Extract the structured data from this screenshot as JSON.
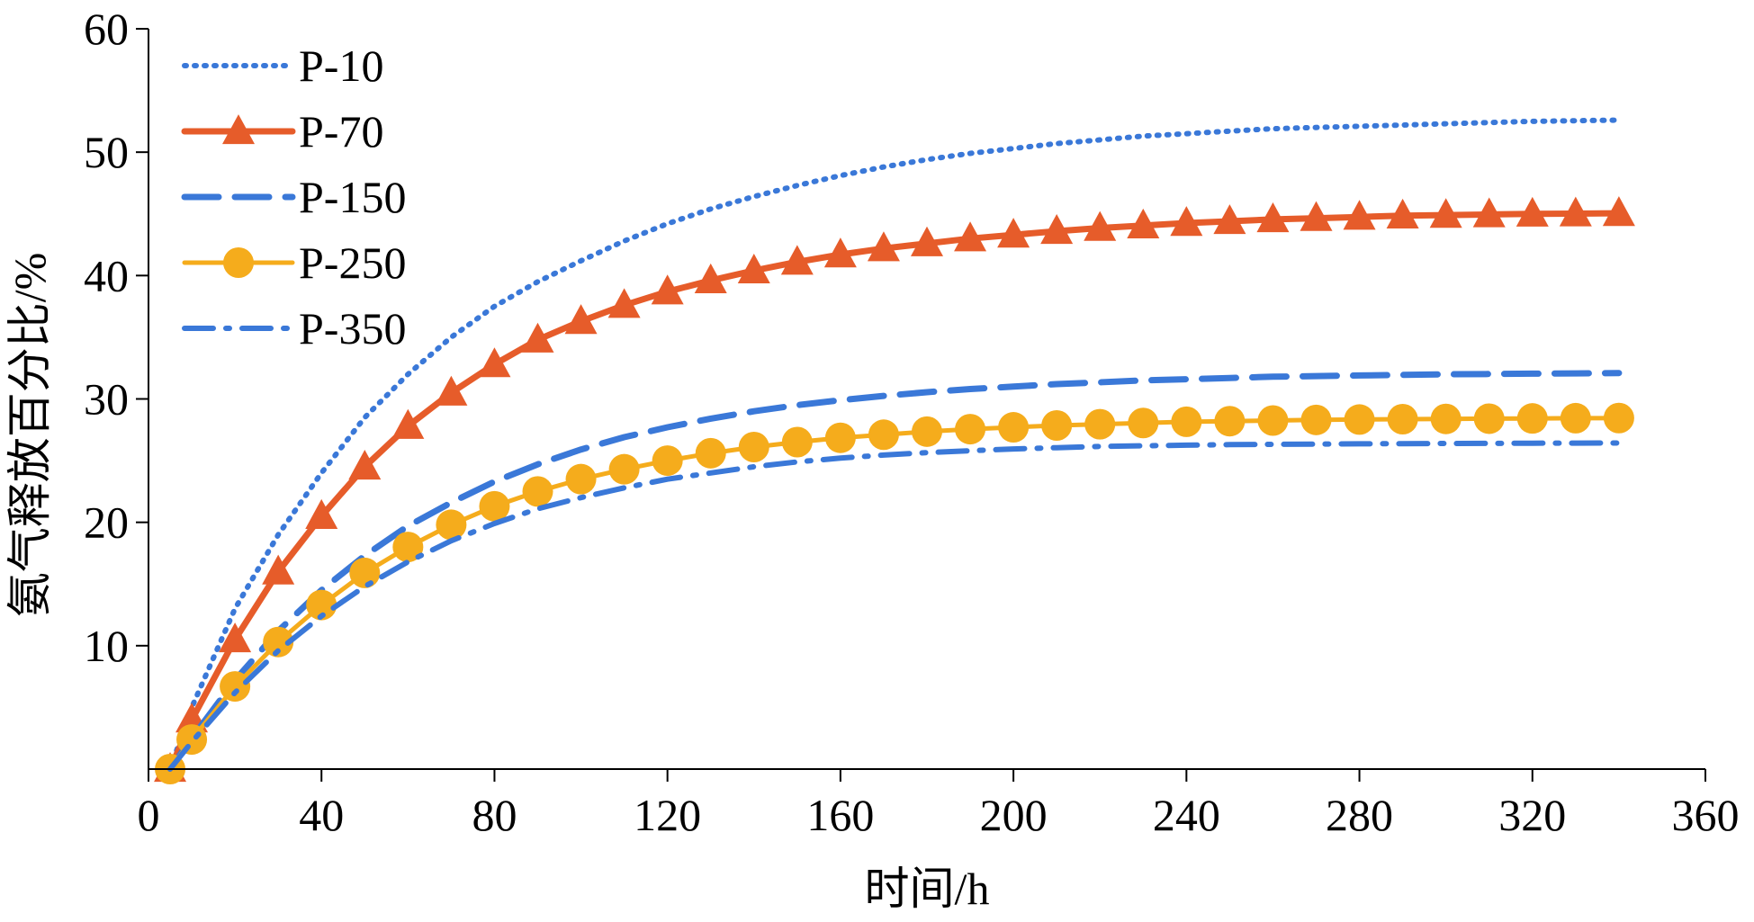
{
  "chart_data": {
    "type": "line",
    "title": "",
    "xlabel": "时间/h",
    "ylabel": "氨气释放百分比/%",
    "xlim": [
      0,
      360
    ],
    "ylim": [
      0,
      60
    ],
    "xticks": [
      0,
      40,
      80,
      120,
      160,
      200,
      240,
      280,
      320,
      360
    ],
    "yticks": [
      10,
      20,
      30,
      40,
      50,
      60
    ],
    "grid": false,
    "legend_position": "top-left",
    "series": [
      {
        "name": "P-10",
        "color": "#3a78d8",
        "style": "dotted",
        "marker": "none",
        "x": [
          5,
          10,
          20,
          30,
          40,
          50,
          60,
          70,
          80,
          90,
          100,
          110,
          120,
          130,
          140,
          150,
          160,
          170,
          180,
          190,
          200,
          210,
          220,
          230,
          240,
          250,
          260,
          270,
          280,
          290,
          300,
          310,
          320,
          330,
          340
        ],
        "y": [
          0,
          5,
          13,
          19,
          24,
          28.5,
          32,
          35,
          37.5,
          39.5,
          41.2,
          42.8,
          44.2,
          45.4,
          46.4,
          47.3,
          48.1,
          48.8,
          49.4,
          49.9,
          50.3,
          50.7,
          51,
          51.3,
          51.5,
          51.7,
          51.9,
          52,
          52.1,
          52.2,
          52.3,
          52.4,
          52.5,
          52.55,
          52.6
        ]
      },
      {
        "name": "P-70",
        "color": "#e65c2a",
        "style": "solid",
        "marker": "triangle",
        "x": [
          5,
          10,
          20,
          30,
          40,
          50,
          60,
          70,
          80,
          90,
          100,
          110,
          120,
          130,
          140,
          150,
          160,
          170,
          180,
          190,
          200,
          210,
          220,
          230,
          240,
          250,
          260,
          270,
          280,
          290,
          300,
          310,
          320,
          330,
          340
        ],
        "y": [
          0,
          4,
          10.5,
          16,
          20.5,
          24.5,
          27.8,
          30.5,
          32.8,
          34.8,
          36.3,
          37.6,
          38.7,
          39.6,
          40.4,
          41.1,
          41.7,
          42.2,
          42.6,
          43,
          43.3,
          43.6,
          43.85,
          44.05,
          44.25,
          44.4,
          44.55,
          44.65,
          44.75,
          44.85,
          44.9,
          44.95,
          45,
          45.02,
          45.05
        ]
      },
      {
        "name": "P-150",
        "color": "#3a78d8",
        "style": "dashed",
        "marker": "none",
        "x": [
          5,
          10,
          20,
          30,
          40,
          50,
          60,
          70,
          80,
          90,
          100,
          110,
          120,
          130,
          140,
          150,
          160,
          170,
          180,
          190,
          200,
          210,
          220,
          230,
          240,
          250,
          260,
          270,
          280,
          290,
          300,
          310,
          320,
          330,
          340
        ],
        "y": [
          0,
          2.5,
          7.2,
          11.2,
          14.5,
          17.3,
          19.7,
          21.6,
          23.3,
          24.7,
          25.9,
          26.9,
          27.7,
          28.4,
          29,
          29.5,
          29.9,
          30.25,
          30.55,
          30.8,
          31,
          31.2,
          31.35,
          31.5,
          31.6,
          31.7,
          31.8,
          31.85,
          31.9,
          31.95,
          32,
          32.02,
          32.05,
          32.07,
          32.1
        ]
      },
      {
        "name": "P-250",
        "color": "#f5ac1c",
        "style": "solid",
        "marker": "circle",
        "x": [
          5,
          10,
          20,
          30,
          40,
          50,
          60,
          70,
          80,
          90,
          100,
          110,
          120,
          130,
          140,
          150,
          160,
          170,
          180,
          190,
          200,
          210,
          220,
          230,
          240,
          250,
          260,
          270,
          280,
          290,
          300,
          310,
          320,
          330,
          340
        ],
        "y": [
          0,
          2.4,
          6.7,
          10.3,
          13.3,
          15.9,
          18,
          19.8,
          21.3,
          22.5,
          23.5,
          24.3,
          25,
          25.6,
          26.1,
          26.5,
          26.85,
          27.1,
          27.35,
          27.55,
          27.7,
          27.85,
          27.95,
          28.05,
          28.15,
          28.2,
          28.25,
          28.3,
          28.33,
          28.36,
          28.38,
          28.4,
          28.42,
          28.44,
          28.45
        ]
      },
      {
        "name": "P-350",
        "color": "#3a78d8",
        "style": "dashdot",
        "marker": "none",
        "x": [
          5,
          10,
          20,
          30,
          40,
          50,
          60,
          70,
          80,
          90,
          100,
          110,
          120,
          130,
          140,
          150,
          160,
          170,
          180,
          190,
          200,
          210,
          220,
          230,
          240,
          250,
          260,
          270,
          280,
          290,
          300,
          310,
          320,
          330,
          340
        ],
        "y": [
          0,
          2.2,
          6.2,
          9.6,
          12.4,
          14.8,
          16.8,
          18.5,
          19.9,
          21.1,
          22,
          22.8,
          23.5,
          24,
          24.5,
          24.9,
          25.2,
          25.45,
          25.65,
          25.8,
          25.95,
          26.05,
          26.15,
          26.2,
          26.25,
          26.3,
          26.32,
          26.34,
          26.36,
          26.38,
          26.39,
          26.4,
          26.41,
          26.42,
          26.43
        ]
      }
    ]
  }
}
